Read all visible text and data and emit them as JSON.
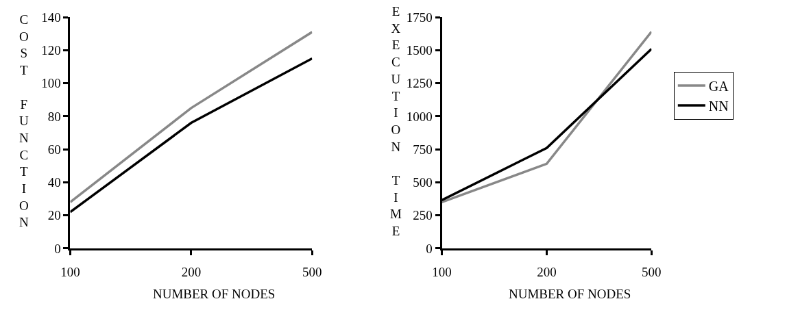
{
  "chart_data": [
    {
      "type": "line",
      "ylabel": "COST FUNCTION",
      "xlabel": "NUMBER OF NODES",
      "categories": [
        "100",
        "200",
        "500"
      ],
      "ylim": [
        0,
        140
      ],
      "yticks": [
        0,
        20,
        40,
        60,
        80,
        100,
        120,
        140
      ],
      "legend": "right",
      "series": [
        {
          "name": "GA",
          "color": "#888888",
          "values": [
            28,
            85,
            131
          ]
        },
        {
          "name": "NN",
          "color": "#000000",
          "values": [
            22,
            76,
            115
          ]
        }
      ]
    },
    {
      "type": "line",
      "ylabel": "EXECUTION TIME",
      "xlabel": "NUMBER OF NODES",
      "categories": [
        "100",
        "200",
        "500"
      ],
      "ylim": [
        0,
        1750
      ],
      "yticks": [
        0,
        250,
        500,
        750,
        1000,
        1250,
        1500,
        1750
      ],
      "series": [
        {
          "color": "#888888",
          "values": [
            350,
            640,
            1640
          ]
        },
        {
          "color": "#000000",
          "values": [
            365,
            760,
            1510
          ]
        }
      ]
    }
  ]
}
